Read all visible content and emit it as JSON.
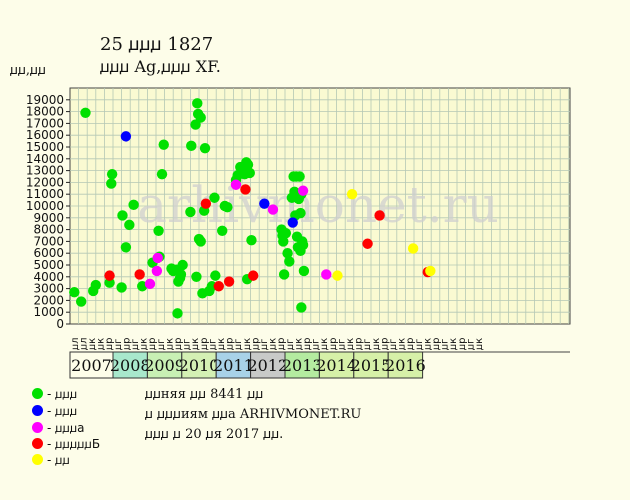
{
  "header": {
    "title": "25 ꙡꙡꙡ 1827",
    "subtitle": "ꙡꙡꙡ Ag,ꙡꙡꙡ XF.",
    "unit": "ꙡꙡ,ꙡꙡ"
  },
  "watermark": "arhivmonet.ru",
  "colors": {
    "background": "#fdfde9",
    "plot_bg": "#fafad2",
    "grid": "#b5c8b5"
  },
  "legend": [
    {
      "color": "#00e000",
      "label": "- ꙡꙡꙡ"
    },
    {
      "color": "#0000ff",
      "label": "- ꙡꙡꙡ"
    },
    {
      "color": "#ff00ff",
      "label": "- ꙡꙡꙡа"
    },
    {
      "color": "#ff0000",
      "label": "- ꙡꙡꙡꙡꙡБ"
    },
    {
      "color": "#ffff00",
      "label": "- ꙡꙡ"
    }
  ],
  "info": {
    "line1": "ꙡꙡняя ꙡꙡ 8441 ꙡꙡ",
    "line2": "ꙡ ꙡꙡꙡиям ꙡꙡа ARHIVMONET.RU",
    "line3": "ꙡꙡꙡ ꙡ 20 ꙡя 2017 ꙡꙡ."
  },
  "chart_data": {
    "type": "scatter",
    "title": "25 ꙡꙡꙡ 1827",
    "ylabel": "ꙡꙡ,ꙡꙡ",
    "ylim": [
      0,
      20000
    ],
    "yticks": [
      0,
      1000,
      2000,
      3000,
      4000,
      5000,
      6000,
      7000,
      8000,
      9000,
      10000,
      11000,
      12000,
      13000,
      14000,
      15000,
      16000,
      17000,
      18000,
      19000
    ],
    "grid": true,
    "quarter_labels": [
      "ꙡл",
      "ꙡл",
      "ꙡк",
      "ꙡк",
      "ꙡр",
      "ꙡг",
      "ꙡр",
      "ꙡг",
      "ꙡк",
      "ꙡр",
      "ꙡг",
      "ꙡк",
      "ꙡр",
      "ꙡг",
      "ꙡк",
      "ꙡр",
      "ꙡг",
      "ꙡк",
      "ꙡр",
      "ꙡг",
      "ꙡк",
      "ꙡр",
      "ꙡг",
      "ꙡк",
      "ꙡр",
      "ꙡг",
      "ꙡк",
      "ꙡр",
      "ꙡг",
      "ꙡк",
      "ꙡр",
      "ꙡг",
      "ꙡк",
      "ꙡр",
      "ꙡг",
      "ꙡк",
      "ꙡр",
      "ꙡг",
      "ꙡк",
      "ꙡр",
      "ꙡг",
      "ꙡк",
      "ꙡр",
      "ꙡг",
      "ꙡк",
      "ꙡр",
      "ꙡг",
      "ꙡк"
    ],
    "years": [
      {
        "label": "2007",
        "start": 0,
        "end": 5,
        "color": "#fdfde9"
      },
      {
        "label": "2008",
        "start": 5,
        "end": 9,
        "color": "#a8e8cc"
      },
      {
        "label": "2009",
        "start": 9,
        "end": 13,
        "color": "#c8f0b4"
      },
      {
        "label": "2010",
        "start": 13,
        "end": 17,
        "color": "#d4f0b4"
      },
      {
        "label": "2011",
        "start": 17,
        "end": 21,
        "color": "#a8d2e8"
      },
      {
        "label": "2012",
        "start": 21,
        "end": 25,
        "color": "#c8cac8"
      },
      {
        "label": "2013",
        "start": 25,
        "end": 29,
        "color": "#b4eba0"
      },
      {
        "label": "2014",
        "start": 29,
        "end": 33,
        "color": "#d6f0a8"
      },
      {
        "label": "2015",
        "start": 33,
        "end": 37,
        "color": "#d6f0a8"
      },
      {
        "label": "2016",
        "start": 37,
        "end": 41,
        "color": "#d6f0a8"
      }
    ],
    "series": [
      {
        "color": "#00e000",
        "points": [
          [
            0.5,
            2700
          ],
          [
            1.3,
            1900
          ],
          [
            1.8,
            17900
          ],
          [
            2.7,
            2800
          ],
          [
            3.0,
            3300
          ],
          [
            4.6,
            3500
          ],
          [
            4.8,
            11900
          ],
          [
            4.9,
            12700
          ],
          [
            6.0,
            3100
          ],
          [
            6.1,
            9200
          ],
          [
            6.5,
            6500
          ],
          [
            6.9,
            8400
          ],
          [
            7.4,
            10100
          ],
          [
            8.4,
            3200
          ],
          [
            9.6,
            5200
          ],
          [
            10.3,
            7900
          ],
          [
            10.4,
            5700
          ],
          [
            10.7,
            12700
          ],
          [
            10.9,
            15200
          ],
          [
            11.8,
            4700
          ],
          [
            12.0,
            4500
          ],
          [
            12.4,
            4600
          ],
          [
            12.5,
            900
          ],
          [
            12.6,
            3600
          ],
          [
            12.8,
            3900
          ],
          [
            12.9,
            4200
          ],
          [
            13.1,
            5000
          ],
          [
            14.0,
            9500
          ],
          [
            14.1,
            15100
          ],
          [
            14.6,
            16900
          ],
          [
            14.7,
            4000
          ],
          [
            14.8,
            18700
          ],
          [
            14.9,
            17800
          ],
          [
            15.0,
            7200
          ],
          [
            15.2,
            17500
          ],
          [
            15.2,
            7000
          ],
          [
            15.4,
            2600
          ],
          [
            15.6,
            9600
          ],
          [
            15.7,
            14900
          ],
          [
            16.2,
            2800
          ],
          [
            16.5,
            3200
          ],
          [
            16.8,
            10700
          ],
          [
            16.9,
            4100
          ],
          [
            17.7,
            7900
          ],
          [
            18.0,
            10000
          ],
          [
            18.3,
            9900
          ],
          [
            19.3,
            12200
          ],
          [
            19.5,
            12600
          ],
          [
            19.8,
            13300
          ],
          [
            20.0,
            13000
          ],
          [
            20.3,
            12700
          ],
          [
            20.5,
            13700
          ],
          [
            20.7,
            13500
          ],
          [
            20.6,
            3800
          ],
          [
            20.9,
            12800
          ],
          [
            21.1,
            7100
          ],
          [
            24.6,
            8000
          ],
          [
            24.7,
            7500
          ],
          [
            24.8,
            7000
          ],
          [
            24.9,
            4200
          ],
          [
            25.1,
            7700
          ],
          [
            25.3,
            6000
          ],
          [
            25.5,
            5300
          ],
          [
            25.8,
            10700
          ],
          [
            26.0,
            12500
          ],
          [
            26.1,
            11200
          ],
          [
            26.2,
            9200
          ],
          [
            26.3,
            12500
          ],
          [
            26.4,
            7400
          ],
          [
            26.5,
            6500
          ],
          [
            26.6,
            10600
          ],
          [
            26.7,
            12500
          ],
          [
            26.8,
            9400
          ],
          [
            26.8,
            6200
          ],
          [
            26.9,
            11000
          ],
          [
            27.0,
            7000
          ],
          [
            27.1,
            6700
          ],
          [
            26.9,
            1400
          ],
          [
            27.2,
            4500
          ]
        ]
      },
      {
        "color": "#0000ff",
        "points": [
          [
            6.5,
            15900
          ],
          [
            22.6,
            10200
          ],
          [
            25.9,
            8600
          ]
        ]
      },
      {
        "color": "#ff00ff",
        "points": [
          [
            9.3,
            3400
          ],
          [
            10.1,
            4500
          ],
          [
            10.2,
            5600
          ],
          [
            19.3,
            11800
          ],
          [
            23.6,
            9700
          ],
          [
            27.1,
            11300
          ],
          [
            29.8,
            4200
          ]
        ]
      },
      {
        "color": "#ff0000",
        "points": [
          [
            4.6,
            4100
          ],
          [
            8.1,
            4200
          ],
          [
            15.8,
            10200
          ],
          [
            17.3,
            3200
          ],
          [
            18.5,
            3600
          ],
          [
            20.4,
            11400
          ],
          [
            21.3,
            4100
          ],
          [
            34.6,
            6800
          ],
          [
            36.0,
            9200
          ],
          [
            41.6,
            4400
          ]
        ]
      },
      {
        "color": "#ffff00",
        "points": [
          [
            31.1,
            4100
          ],
          [
            32.8,
            11000
          ],
          [
            39.9,
            6400
          ],
          [
            41.9,
            4500
          ]
        ]
      }
    ]
  }
}
